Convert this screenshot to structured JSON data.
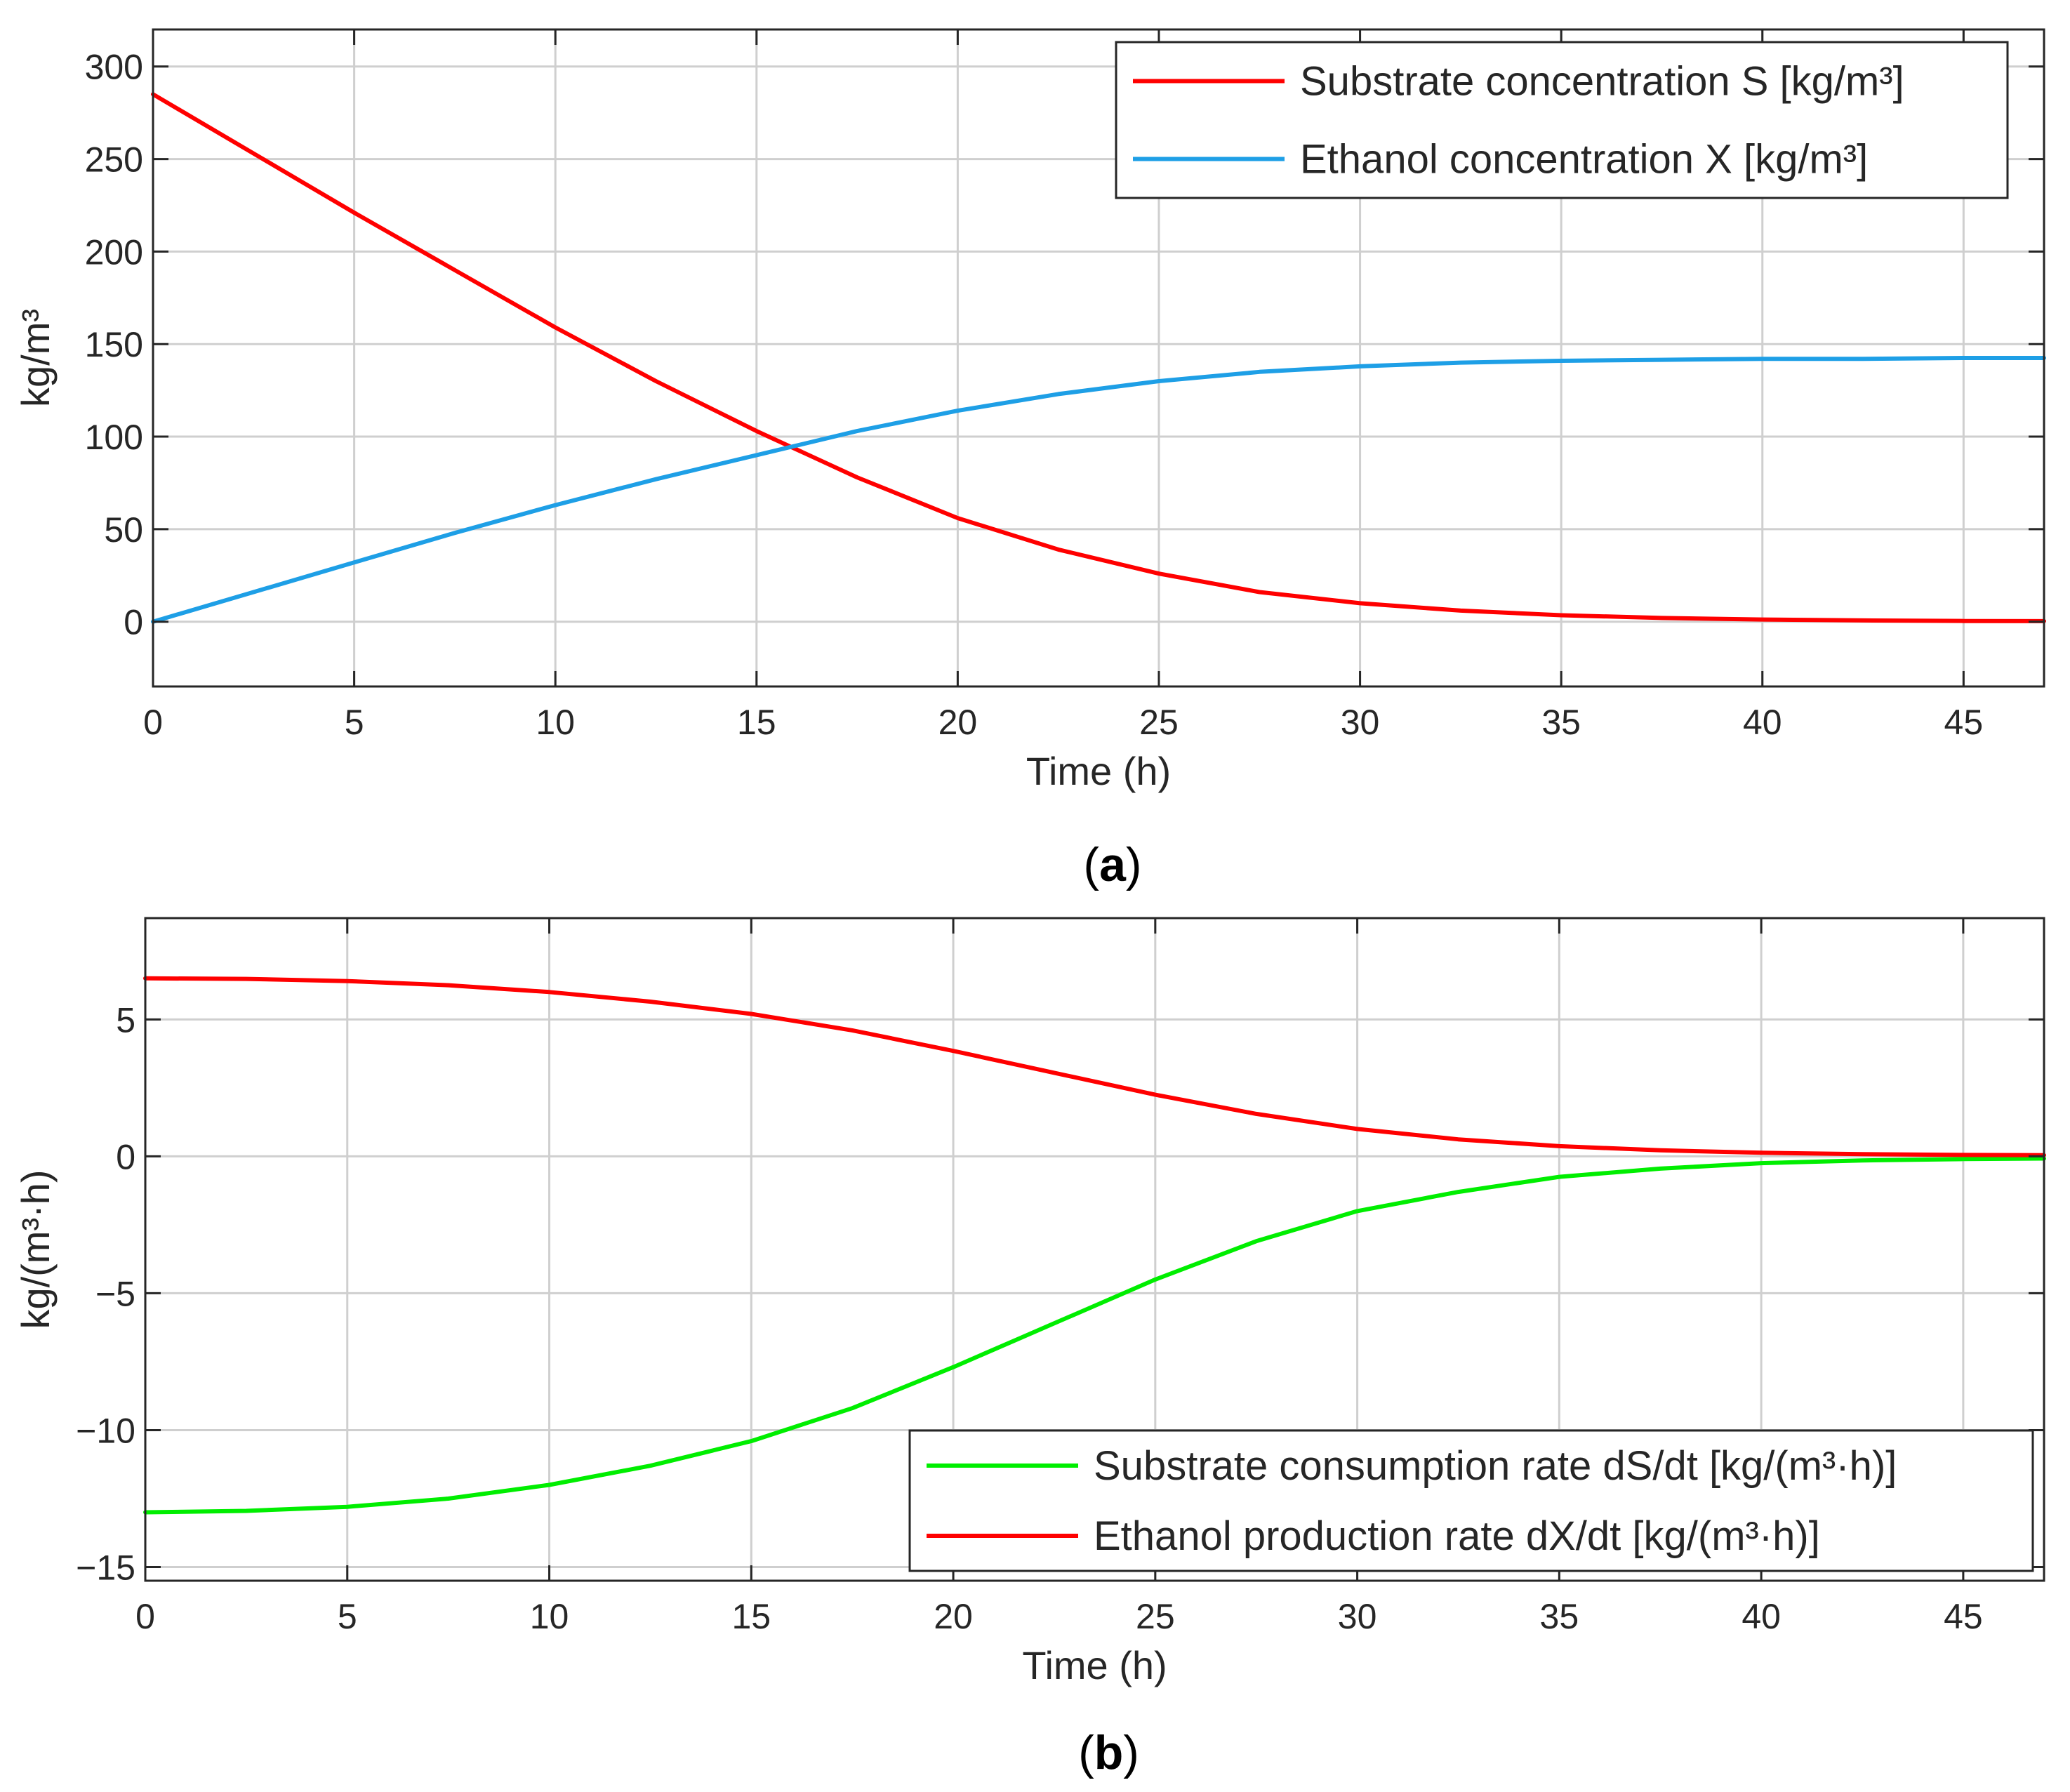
{
  "chart_data": [
    {
      "type": "line",
      "panel_label": "a",
      "xlabel": "Time (h)",
      "ylabel": "kg/m³",
      "xlim": [
        0,
        47
      ],
      "ylim": [
        -35,
        320
      ],
      "xticks": [
        0,
        5,
        10,
        15,
        20,
        25,
        30,
        35,
        40,
        45
      ],
      "yticks": [
        0,
        50,
        100,
        150,
        200,
        250,
        300
      ],
      "ytick_labels": [
        "0",
        "50",
        "100",
        "150",
        "200",
        "250",
        "300"
      ],
      "grid": true,
      "legend_position": "top-right",
      "series": [
        {
          "name": "Substrate concentration S [kg/m³]",
          "color": "#ff0000",
          "x": [
            0,
            2.5,
            5,
            7.5,
            10,
            12.5,
            15,
            17.5,
            20,
            22.5,
            25,
            27.5,
            30,
            32.5,
            35,
            37.5,
            40,
            42.5,
            45,
            47
          ],
          "y": [
            285,
            253,
            221,
            190,
            159,
            130,
            103,
            78,
            56,
            39,
            26,
            16,
            10,
            6,
            3.5,
            2,
            1.2,
            0.7,
            0.4,
            0.3
          ]
        },
        {
          "name": "Ethanol concentration X [kg/m³]",
          "color": "#1e9fe6",
          "x": [
            0,
            2.5,
            5,
            7.5,
            10,
            12.5,
            15,
            17.5,
            20,
            22.5,
            25,
            27.5,
            30,
            32.5,
            35,
            37.5,
            40,
            42.5,
            45,
            47
          ],
          "y": [
            0,
            16,
            32,
            48,
            63,
            77,
            90,
            103,
            114,
            123,
            130,
            135,
            138,
            140,
            141,
            141.5,
            142,
            142,
            142.5,
            142.5
          ]
        }
      ]
    },
    {
      "type": "line",
      "panel_label": "b",
      "xlabel": "Time (h)",
      "ylabel": "kg/(m³·h)",
      "xlim": [
        0,
        47
      ],
      "ylim": [
        -15.5,
        8.7
      ],
      "xticks": [
        0,
        5,
        10,
        15,
        20,
        25,
        30,
        35,
        40,
        45
      ],
      "yticks": [
        5,
        0,
        -5,
        -10,
        -15
      ],
      "ytick_labels": [
        "5",
        "0",
        "−5",
        "−10",
        "−15"
      ],
      "grid": true,
      "legend_position": "bottom-right",
      "series": [
        {
          "name": "Substrate consumption rate dS/dt [kg/(m³·h)]",
          "color": "#00ee00",
          "x": [
            0,
            2.5,
            5,
            7.5,
            10,
            12.5,
            15,
            17.5,
            20,
            22.5,
            25,
            27.5,
            30,
            32.5,
            35,
            37.5,
            40,
            42.5,
            45,
            47
          ],
          "y": [
            -13.0,
            -12.95,
            -12.8,
            -12.5,
            -12.0,
            -11.3,
            -10.4,
            -9.2,
            -7.7,
            -6.1,
            -4.5,
            -3.1,
            -2.0,
            -1.3,
            -0.75,
            -0.45,
            -0.25,
            -0.15,
            -0.1,
            -0.08
          ]
        },
        {
          "name": "Ethanol production rate dX/dt [kg/(m³·h)]",
          "color": "#ff0000",
          "x": [
            0,
            2.5,
            5,
            7.5,
            10,
            12.5,
            15,
            17.5,
            20,
            22.5,
            25,
            27.5,
            30,
            32.5,
            35,
            37.5,
            40,
            42.5,
            45,
            47
          ],
          "y": [
            6.5,
            6.48,
            6.4,
            6.25,
            6.0,
            5.65,
            5.2,
            4.6,
            3.85,
            3.05,
            2.25,
            1.55,
            1.0,
            0.62,
            0.37,
            0.22,
            0.13,
            0.08,
            0.05,
            0.04
          ]
        }
      ]
    }
  ]
}
